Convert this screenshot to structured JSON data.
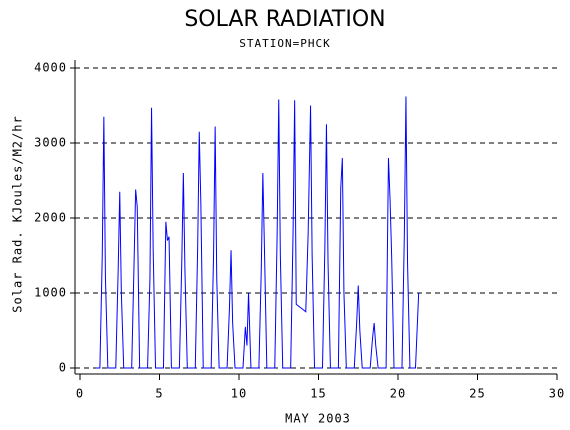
{
  "chart_data": {
    "type": "line",
    "title": "SOLAR RADIATION",
    "subtitle": "STATION=PHCK",
    "x_label": "MAY 2003",
    "y_label": "Solar Rad. KJoules/M2/hr",
    "xlim": [
      0,
      30
    ],
    "xticks": [
      0,
      5,
      10,
      15,
      20,
      25,
      30
    ],
    "ylim": [
      -80,
      4100
    ],
    "yticks": [
      0,
      1000,
      2000,
      3000,
      4000
    ],
    "grid": true,
    "series": [
      {
        "color": "#0000ff",
        "x": [
          1,
          1.25,
          1.4,
          1.5,
          1.6,
          1.75,
          2.25,
          2.4,
          2.5,
          2.6,
          2.75,
          3.25,
          3.4,
          3.5,
          3.6,
          3.75,
          4.25,
          4.4,
          4.5,
          4.6,
          4.75,
          5.25,
          5.4,
          5.5,
          5.6,
          5.75,
          6.25,
          6.4,
          6.5,
          6.6,
          6.75,
          7.25,
          7.4,
          7.5,
          7.6,
          7.75,
          8.25,
          8.4,
          8.5,
          8.6,
          8.75,
          9.25,
          9.4,
          9.5,
          9.6,
          9.75,
          10.25,
          10.4,
          10.5,
          10.6,
          10.75,
          11.25,
          11.4,
          11.5,
          11.6,
          11.75,
          12.25,
          12.4,
          12.5,
          12.6,
          12.75,
          13.25,
          13.4,
          13.5,
          13.6,
          13.9,
          14.2,
          14.35,
          14.5,
          14.6,
          14.75,
          15.25,
          15.4,
          15.5,
          15.6,
          15.75,
          16.25,
          16.4,
          16.5,
          16.6,
          16.75,
          17.25,
          17.4,
          17.5,
          17.6,
          17.75,
          18.25,
          18.4,
          18.5,
          18.6,
          18.75,
          19.25,
          19.4,
          19.5,
          19.6,
          19.75,
          20.25,
          20.4,
          20.5,
          20.6,
          20.75,
          21.1,
          21.3
        ],
        "values": [
          0,
          0,
          1500,
          3350,
          1200,
          0,
          0,
          1300,
          2350,
          1000,
          0,
          0,
          1400,
          2380,
          2150,
          0,
          0,
          1200,
          3470,
          1600,
          0,
          0,
          1950,
          1700,
          1750,
          0,
          0,
          1400,
          2600,
          1300,
          0,
          0,
          1600,
          3150,
          2200,
          0,
          0,
          1500,
          3220,
          1200,
          0,
          0,
          800,
          1570,
          600,
          0,
          0,
          550,
          300,
          1000,
          0,
          0,
          1300,
          2600,
          1600,
          0,
          0,
          1800,
          3580,
          1500,
          0,
          0,
          1800,
          3570,
          850,
          800,
          750,
          1800,
          3500,
          1500,
          0,
          0,
          1600,
          3250,
          1400,
          0,
          0,
          2400,
          2800,
          1000,
          0,
          0,
          600,
          1100,
          500,
          0,
          0,
          400,
          600,
          300,
          0,
          0,
          2800,
          2250,
          1500,
          0,
          0,
          1800,
          3620,
          1400,
          0,
          0,
          1000
        ]
      }
    ]
  }
}
